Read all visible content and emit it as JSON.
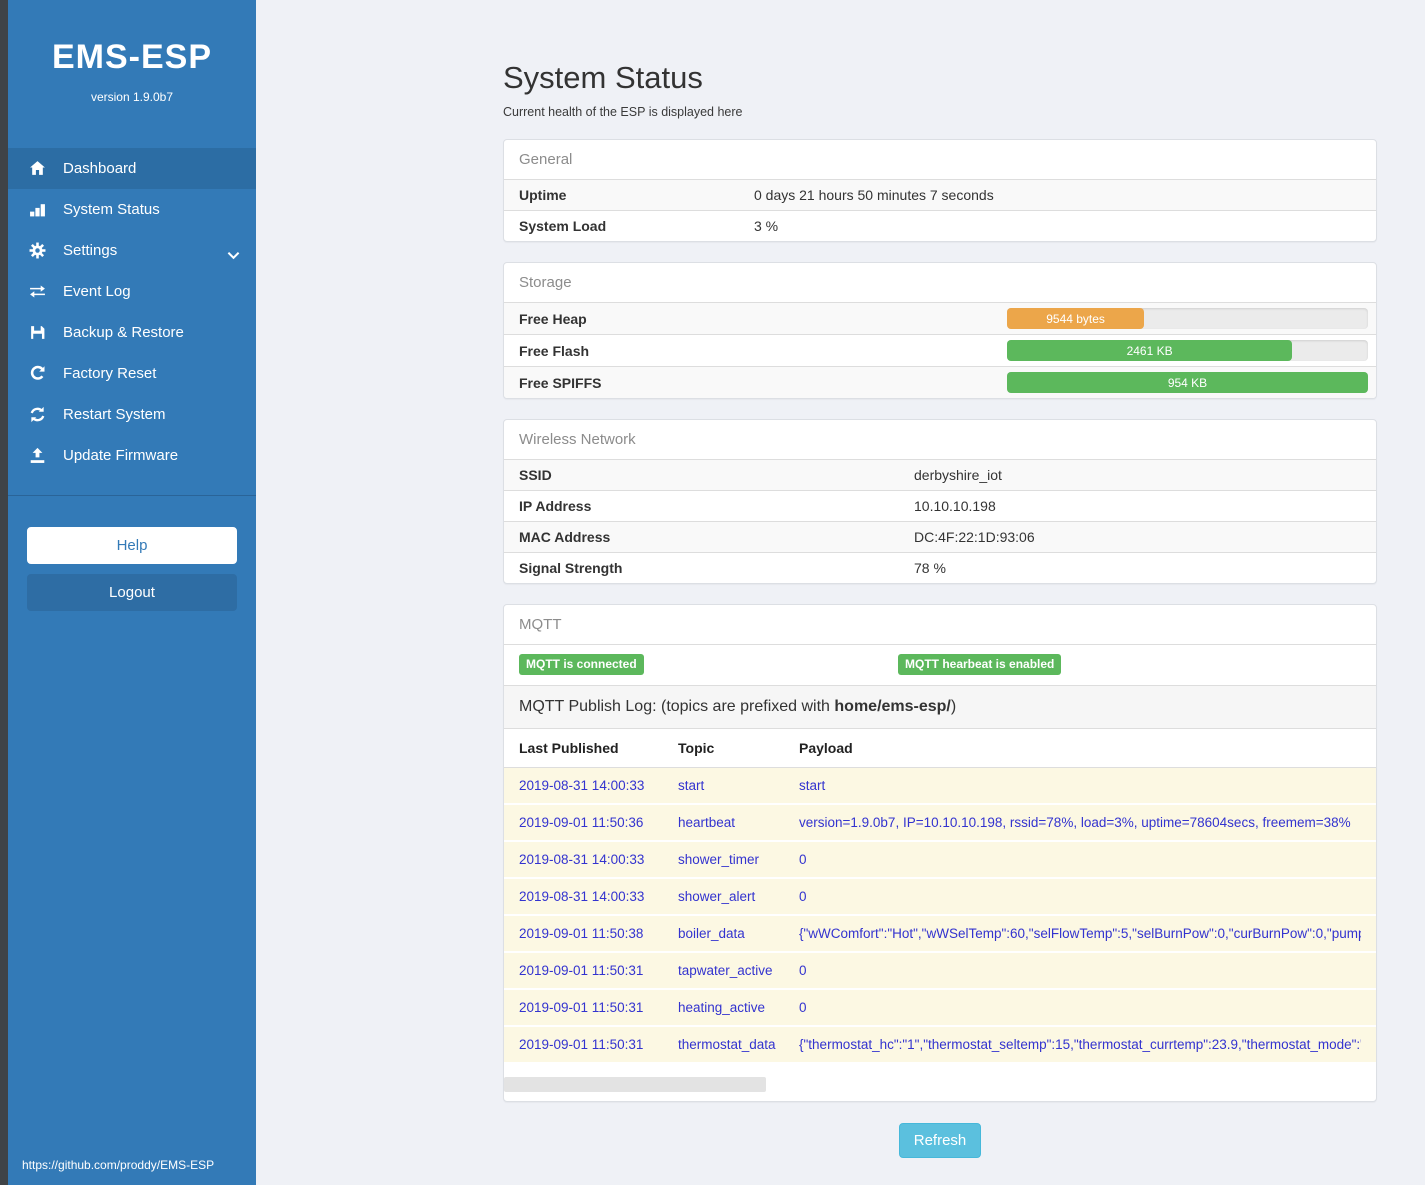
{
  "sidebar": {
    "brand": "EMS-ESP",
    "version": "version 1.9.0b7",
    "items": [
      {
        "label": "Dashboard",
        "icon": "home",
        "active": true,
        "expandable": false
      },
      {
        "label": "System Status",
        "icon": "chart",
        "active": false,
        "expandable": false
      },
      {
        "label": "Settings",
        "icon": "gear",
        "active": false,
        "expandable": true
      },
      {
        "label": "Event Log",
        "icon": "exchange",
        "active": false,
        "expandable": false
      },
      {
        "label": "Backup & Restore",
        "icon": "save",
        "active": false,
        "expandable": false
      },
      {
        "label": "Factory Reset",
        "icon": "rotate-right",
        "active": false,
        "expandable": false
      },
      {
        "label": "Restart System",
        "icon": "refresh",
        "active": false,
        "expandable": false
      },
      {
        "label": "Update Firmware",
        "icon": "upload",
        "active": false,
        "expandable": false
      }
    ],
    "help_label": "Help",
    "logout_label": "Logout",
    "footer": "https://github.com/proddy/EMS-ESP"
  },
  "header": {
    "title": "System Status",
    "subtitle": "Current health of the ESP is displayed here"
  },
  "general": {
    "heading": "General",
    "rows": [
      {
        "label": "Uptime",
        "value": "0 days 21 hours 50 minutes 7 seconds"
      },
      {
        "label": "System Load",
        "value": "3 %"
      }
    ]
  },
  "storage": {
    "heading": "Storage",
    "rows": [
      {
        "label": "Free Heap",
        "value": "9544 bytes",
        "percent": 38,
        "color": "#eca64a"
      },
      {
        "label": "Free Flash",
        "value": "2461 KB",
        "percent": 79,
        "color": "#5cb85c"
      },
      {
        "label": "Free SPIFFS",
        "value": "954 KB",
        "percent": 100,
        "color": "#5cb85c"
      }
    ]
  },
  "wireless": {
    "heading": "Wireless Network",
    "rows": [
      {
        "label": "SSID",
        "value": "derbyshire_iot"
      },
      {
        "label": "IP Address",
        "value": "10.10.10.198"
      },
      {
        "label": "MAC Address",
        "value": "DC:4F:22:1D:93:06"
      },
      {
        "label": "Signal Strength",
        "value": "78 %"
      }
    ]
  },
  "mqtt": {
    "heading": "MQTT",
    "badges": [
      "MQTT is connected",
      "MQTT hearbeat is enabled"
    ],
    "publish_log": {
      "prefix": "MQTT Publish Log: (topics are prefixed with ",
      "bold": "home/ems-esp/",
      "suffix": ")"
    },
    "columns": [
      "Last Published",
      "Topic",
      "Payload"
    ],
    "rows": [
      {
        "published": "2019-08-31 14:00:33",
        "topic": "start",
        "payload": "start"
      },
      {
        "published": "2019-09-01 11:50:36",
        "topic": "heartbeat",
        "payload": "version=1.9.0b7, IP=10.10.10.198, rssid=78%, load=3%, uptime=78604secs, freemem=38%"
      },
      {
        "published": "2019-08-31 14:00:33",
        "topic": "shower_timer",
        "payload": "0"
      },
      {
        "published": "2019-08-31 14:00:33",
        "topic": "shower_alert",
        "payload": "0"
      },
      {
        "published": "2019-09-01 11:50:38",
        "topic": "boiler_data",
        "payload": "{\"wWComfort\":\"Hot\",\"wWSelTemp\":60,\"selFlowTemp\":5,\"selBurnPow\":0,\"curBurnPow\":0,\"pump"
      },
      {
        "published": "2019-09-01 11:50:31",
        "topic": "tapwater_active",
        "payload": "0"
      },
      {
        "published": "2019-09-01 11:50:31",
        "topic": "heating_active",
        "payload": "0"
      },
      {
        "published": "2019-09-01 11:50:31",
        "topic": "thermostat_data",
        "payload": "{\"thermostat_hc\":\"1\",\"thermostat_seltemp\":15,\"thermostat_currtemp\":23.9,\"thermostat_mode\":\""
      }
    ]
  },
  "refresh_label": "Refresh",
  "colors": {
    "sidebar": "#337ab7",
    "sidebar_active": "#2c6da4",
    "green": "#5cb85c",
    "orange": "#eca64a",
    "info_button": "#5bc0de",
    "mqtt_row_bg": "#fcf8e3",
    "mqtt_text": "#3333cf"
  }
}
